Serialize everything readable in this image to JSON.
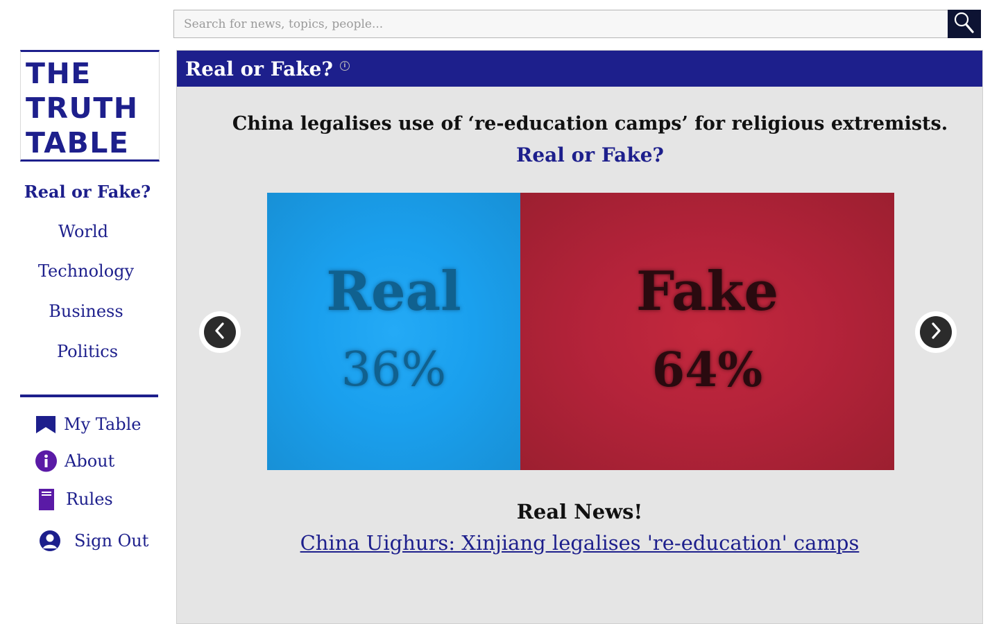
{
  "search": {
    "placeholder": "Search for news, topics, people..."
  },
  "logo": {
    "lines": [
      "THE",
      "TRUTH",
      "TABLE"
    ]
  },
  "nav": {
    "items": [
      {
        "label": "Real or Fake?",
        "active": true
      },
      {
        "label": "World"
      },
      {
        "label": "Technology"
      },
      {
        "label": "Business"
      },
      {
        "label": "Politics"
      }
    ]
  },
  "user_menu": {
    "items": [
      {
        "label": "My Table",
        "icon": "bookmark-icon"
      },
      {
        "label": "About",
        "icon": "info-icon"
      },
      {
        "label": "Rules",
        "icon": "book-icon"
      },
      {
        "label": "Sign Out",
        "icon": "user-icon"
      }
    ]
  },
  "panel": {
    "title": "Real or Fake?",
    "headline": "China legalises use of ‘re-education camps’ for religious extremists.",
    "question": "Real or Fake?",
    "real": {
      "label": "Real",
      "percent_text": "36%",
      "percent": 36
    },
    "fake": {
      "label": "Fake",
      "percent_text": "64%",
      "percent": 64
    },
    "result": "Real News!",
    "source_link": "China Uighurs: Xinjiang legalises 're-education' camps"
  },
  "colors": {
    "brand": "#1d1f8c",
    "real": "#1aa0ee",
    "fake": "#b4233a",
    "panel_bg": "#e5e5e5"
  }
}
